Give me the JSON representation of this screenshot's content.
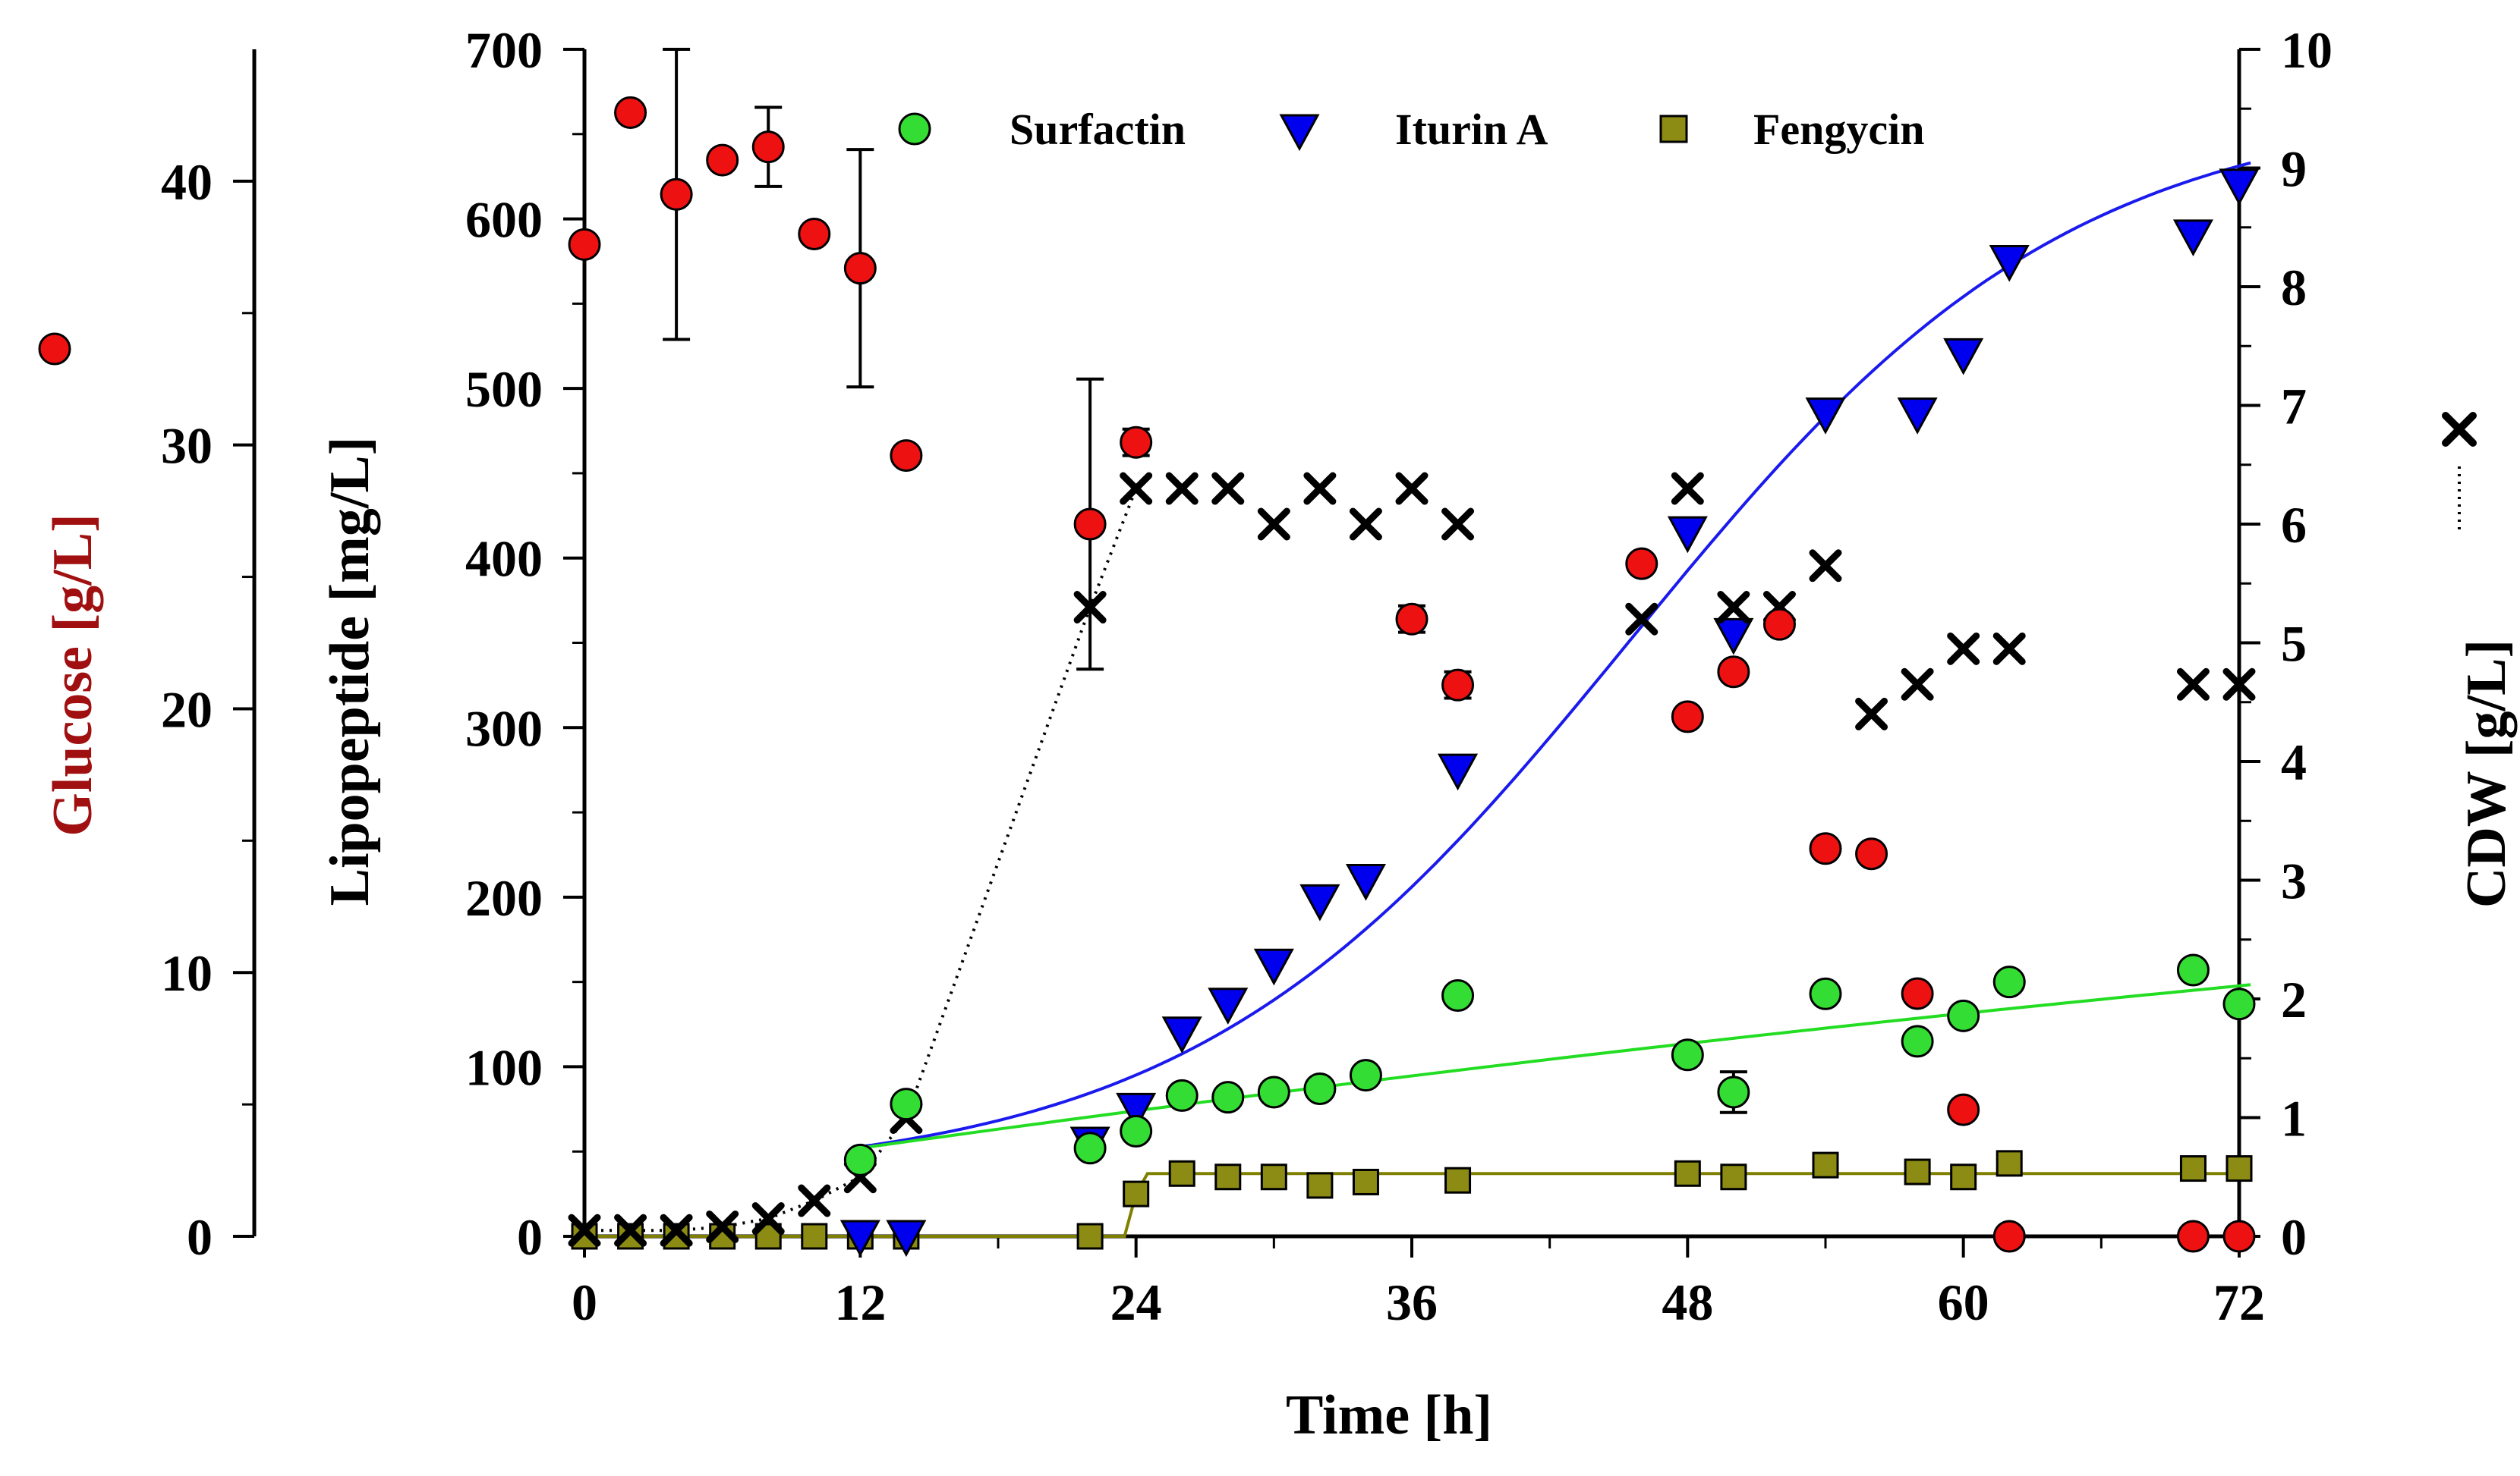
{
  "chart_data": {
    "type": "scatter",
    "x_axis": {
      "label": "Time [h]",
      "range": [
        0,
        72
      ],
      "ticks": [
        0,
        12,
        24,
        36,
        48,
        60,
        72
      ]
    },
    "y_axes": {
      "glucose": {
        "label": "Glucose [g/L]",
        "range": [
          0,
          45
        ],
        "ticks": [
          0,
          10,
          20,
          30,
          40
        ],
        "position": "far-left"
      },
      "lipopeptide": {
        "label": "Lipopeptide [mg/L]",
        "range": [
          0,
          700
        ],
        "ticks": [
          0,
          100,
          200,
          300,
          400,
          500,
          600,
          700
        ],
        "position": "left"
      },
      "cdw": {
        "label": "CDW [g/L]",
        "range": [
          0,
          10
        ],
        "ticks": [
          0,
          1,
          2,
          3,
          4,
          5,
          6,
          7,
          8,
          9,
          10
        ],
        "position": "right"
      }
    },
    "legend": {
      "placement": "top-center",
      "entries": [
        "Surfactin",
        "Iturin A",
        "Fengycin"
      ]
    },
    "series": [
      {
        "name": "Surfactin",
        "axis": "lipopeptide",
        "marker": "circle",
        "color": "#33dd33",
        "points": [
          [
            12,
            45
          ],
          [
            14,
            78
          ],
          [
            22,
            52
          ],
          [
            24,
            62
          ],
          [
            26,
            83
          ],
          [
            28,
            82
          ],
          [
            30,
            85
          ],
          [
            32,
            87
          ],
          [
            34,
            95
          ],
          [
            38,
            142
          ],
          [
            48,
            107
          ],
          [
            50,
            85
          ],
          [
            54,
            143
          ],
          [
            58,
            115
          ],
          [
            60,
            130
          ],
          [
            62,
            150
          ],
          [
            70,
            157
          ],
          [
            72,
            137
          ]
        ],
        "error_bars": [
          [
            50,
            12
          ]
        ]
      },
      {
        "name": "Iturin A",
        "axis": "lipopeptide",
        "marker": "triangle-down",
        "color": "#0000ee",
        "points": [
          [
            12,
            0
          ],
          [
            14,
            0
          ],
          [
            22,
            55
          ],
          [
            24,
            75
          ],
          [
            26,
            120
          ],
          [
            28,
            137
          ],
          [
            30,
            160
          ],
          [
            32,
            198
          ],
          [
            34,
            210
          ],
          [
            38,
            275
          ],
          [
            48,
            415
          ],
          [
            50,
            355
          ],
          [
            54,
            485
          ],
          [
            58,
            485
          ],
          [
            60,
            520
          ],
          [
            62,
            575
          ],
          [
            70,
            590
          ],
          [
            72,
            620
          ]
        ]
      },
      {
        "name": "Fengycin",
        "axis": "lipopeptide",
        "marker": "square",
        "color": "#8c8c14",
        "points": [
          [
            0,
            0
          ],
          [
            2,
            0
          ],
          [
            4,
            0
          ],
          [
            6,
            0
          ],
          [
            8,
            0
          ],
          [
            10,
            0
          ],
          [
            12,
            0
          ],
          [
            14,
            0
          ],
          [
            22,
            0
          ],
          [
            24,
            25
          ],
          [
            26,
            37
          ],
          [
            28,
            35
          ],
          [
            30,
            35
          ],
          [
            32,
            30
          ],
          [
            34,
            32
          ],
          [
            38,
            33
          ],
          [
            48,
            37
          ],
          [
            50,
            35
          ],
          [
            54,
            42
          ],
          [
            58,
            38
          ],
          [
            60,
            35
          ],
          [
            62,
            43
          ],
          [
            70,
            40
          ],
          [
            72,
            40
          ]
        ]
      },
      {
        "name": "Glucose",
        "axis": "glucose",
        "marker": "circle",
        "color": "#ee1111",
        "points": [
          [
            0,
            37.6
          ],
          [
            2,
            42.6
          ],
          [
            4,
            39.5
          ],
          [
            6,
            40.8
          ],
          [
            8,
            41.3
          ],
          [
            10,
            38.0
          ],
          [
            12,
            36.7
          ],
          [
            14,
            29.6
          ],
          [
            22,
            27.0
          ],
          [
            24,
            30.1
          ],
          [
            36,
            23.4
          ],
          [
            38,
            20.9
          ],
          [
            46,
            25.5
          ],
          [
            48,
            19.7
          ],
          [
            50,
            21.4
          ],
          [
            52,
            23.2
          ],
          [
            54,
            14.7
          ],
          [
            56,
            14.5
          ],
          [
            58,
            9.2
          ],
          [
            60,
            4.8
          ],
          [
            62,
            0
          ],
          [
            70,
            0
          ],
          [
            72,
            0
          ]
        ],
        "error_bars": [
          [
            4,
            5.5
          ],
          [
            8,
            1.5
          ],
          [
            12,
            4.5
          ],
          [
            22,
            5.5
          ],
          [
            24,
            0.5
          ],
          [
            36,
            0.5
          ],
          [
            38,
            0.5
          ]
        ]
      },
      {
        "name": "CDW",
        "axis": "cdw",
        "marker": "x",
        "color": "#000000",
        "points": [
          [
            0,
            0.05
          ],
          [
            2,
            0.05
          ],
          [
            4,
            0.05
          ],
          [
            6,
            0.08
          ],
          [
            8,
            0.15
          ],
          [
            10,
            0.3
          ],
          [
            12,
            0.5
          ],
          [
            14,
            1.0
          ],
          [
            22,
            5.3
          ],
          [
            24,
            6.3
          ],
          [
            26,
            6.3
          ],
          [
            28,
            6.3
          ],
          [
            30,
            6.0
          ],
          [
            32,
            6.3
          ],
          [
            34,
            6.0
          ],
          [
            36,
            6.3
          ],
          [
            38,
            6.0
          ],
          [
            46,
            5.2
          ],
          [
            48,
            6.3
          ],
          [
            50,
            5.3
          ],
          [
            52,
            5.3
          ],
          [
            54,
            5.65
          ],
          [
            56,
            4.4
          ],
          [
            58,
            4.65
          ],
          [
            60,
            4.95
          ],
          [
            62,
            4.95
          ],
          [
            70,
            4.65
          ],
          [
            72,
            4.65
          ]
        ]
      }
    ],
    "colors": {
      "surfactin_fit": "#22dd22",
      "iturin_fit": "#1a1aee",
      "fengycin_fit": "#808000",
      "cdw_line": "#000000"
    }
  }
}
